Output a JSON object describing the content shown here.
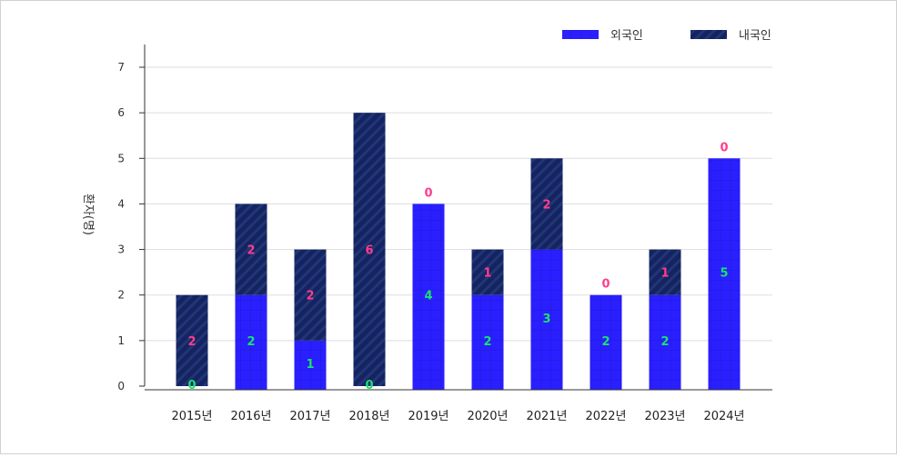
{
  "chart_data": {
    "type": "bar",
    "stacked": true,
    "categories": [
      "2015년",
      "2016년",
      "2017년",
      "2018년",
      "2019년",
      "2020년",
      "2021년",
      "2022년",
      "2023년",
      "2024년"
    ],
    "series": [
      {
        "name": "외국인",
        "values": [
          0,
          2,
          1,
          0,
          4,
          2,
          3,
          2,
          2,
          5
        ],
        "color": "#2a1fff",
        "label_color": "#19e36e"
      },
      {
        "name": "내국인",
        "values": [
          2,
          2,
          2,
          6,
          0,
          1,
          2,
          0,
          1,
          0
        ],
        "color": "#14245e",
        "label_color": "#ff3d8b"
      }
    ],
    "ylabel": "환자(명)",
    "ylim": [
      0,
      7
    ],
    "yticks": [
      "0",
      "1",
      "2",
      "3",
      "4",
      "5",
      "6",
      "7"
    ],
    "grid": true,
    "legend": "top-right"
  }
}
